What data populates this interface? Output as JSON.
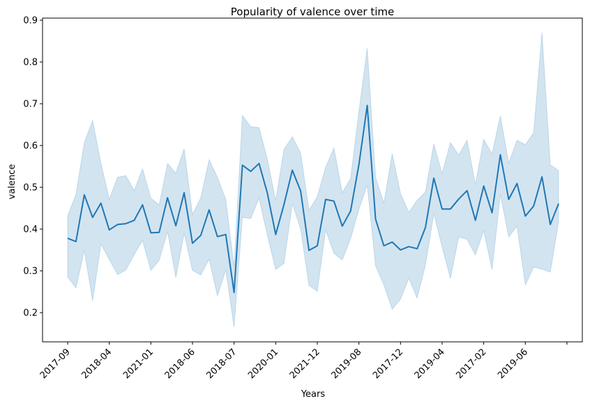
{
  "chart_data": {
    "type": "line",
    "title": "Popularity of valence over time",
    "xlabel": "Years",
    "ylabel": "valence",
    "ylim": [
      0.13,
      0.905
    ],
    "grid": false,
    "legend": "none",
    "x_tick_labels": [
      "2017-09",
      "2018-04",
      "2021-01",
      "2018-06",
      "2018-07",
      "2020-01",
      "2021-12",
      "2019-08",
      "2017-12",
      "2019-04",
      "2017-02",
      "2019-06"
    ],
    "x_tick_every": 5,
    "y_ticks": [
      0.2,
      0.3,
      0.4,
      0.5,
      0.6,
      0.7,
      0.8,
      0.9
    ],
    "y_tick_labels": [
      "0.2",
      "0.3",
      "0.4",
      "0.5",
      "0.6",
      "0.7",
      "0.8",
      "0.9"
    ],
    "colors": {
      "line": "#1f77b4",
      "band": "#1f77b4",
      "axis": "#000000"
    },
    "series": [
      {
        "values": [
          0.378,
          0.37,
          0.482,
          0.428,
          0.462,
          0.398,
          0.411,
          0.413,
          0.421,
          0.458,
          0.391,
          0.392,
          0.475,
          0.408,
          0.487,
          0.366,
          0.385,
          0.446,
          0.382,
          0.387,
          0.248,
          0.553,
          0.538,
          0.557,
          0.486,
          0.387,
          0.459,
          0.541,
          0.491,
          0.349,
          0.36,
          0.471,
          0.467,
          0.407,
          0.443,
          0.554,
          0.696,
          0.424,
          0.36,
          0.369,
          0.35,
          0.358,
          0.353,
          0.404,
          0.522,
          0.448,
          0.448,
          0.472,
          0.492,
          0.421,
          0.503,
          0.439,
          0.578,
          0.471,
          0.509,
          0.431,
          0.455,
          0.525,
          0.411,
          0.461
        ],
        "ci_lower": [
          0.285,
          0.259,
          0.349,
          0.228,
          0.364,
          0.327,
          0.291,
          0.302,
          0.339,
          0.373,
          0.301,
          0.325,
          0.394,
          0.284,
          0.39,
          0.301,
          0.29,
          0.328,
          0.24,
          0.302,
          0.165,
          0.428,
          0.425,
          0.474,
          0.385,
          0.303,
          0.318,
          0.461,
          0.4,
          0.265,
          0.251,
          0.398,
          0.342,
          0.326,
          0.377,
          0.447,
          0.505,
          0.312,
          0.266,
          0.208,
          0.232,
          0.282,
          0.235,
          0.314,
          0.437,
          0.357,
          0.282,
          0.381,
          0.375,
          0.338,
          0.396,
          0.303,
          0.483,
          0.381,
          0.407,
          0.266,
          0.309,
          0.304,
          0.297,
          0.417
        ],
        "ci_upper": [
          0.432,
          0.483,
          0.607,
          0.66,
          0.558,
          0.471,
          0.524,
          0.528,
          0.492,
          0.544,
          0.474,
          0.458,
          0.557,
          0.534,
          0.592,
          0.435,
          0.475,
          0.566,
          0.524,
          0.471,
          0.31,
          0.672,
          0.645,
          0.643,
          0.567,
          0.468,
          0.591,
          0.621,
          0.582,
          0.445,
          0.478,
          0.548,
          0.594,
          0.487,
          0.521,
          0.681,
          0.833,
          0.524,
          0.462,
          0.581,
          0.485,
          0.44,
          0.469,
          0.489,
          0.604,
          0.533,
          0.607,
          0.577,
          0.613,
          0.506,
          0.615,
          0.58,
          0.671,
          0.558,
          0.613,
          0.602,
          0.631,
          0.871,
          0.554,
          0.54
        ]
      }
    ]
  }
}
